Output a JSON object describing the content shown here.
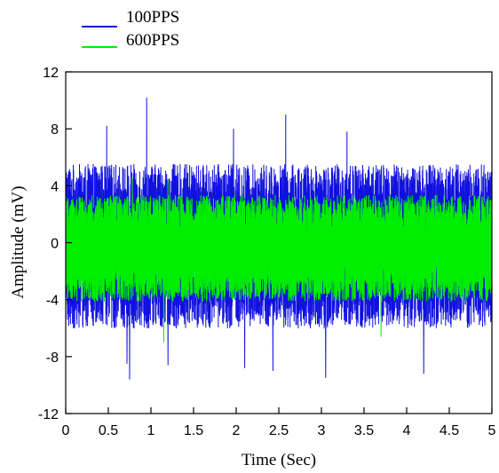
{
  "chart_data": {
    "type": "line",
    "xlabel": "Time (Sec)",
    "ylabel": "Amplitude (mV)",
    "xlim": [
      0,
      5
    ],
    "ylim": [
      -12,
      12
    ],
    "x_ticks": [
      "0",
      "0.5",
      "1",
      "1.5",
      "2",
      "2.5",
      "3",
      "3.5",
      "4",
      "4.5",
      "5"
    ],
    "y_ticks": [
      "-12",
      "-8",
      "-4",
      "0",
      "4",
      "8",
      "12"
    ],
    "legend_position": "top-left",
    "grid": false,
    "series": [
      {
        "name": "100PPS",
        "color": "#1010e0",
        "envelope": {
          "typical_positive_peak": 5.0,
          "typical_negative_peak": -5.5,
          "max_positive_spikes": [
            {
              "x": 0.48,
              "y": 8.2
            },
            {
              "x": 0.95,
              "y": 10.2
            },
            {
              "x": 1.97,
              "y": 8.0
            },
            {
              "x": 2.58,
              "y": 9.0
            },
            {
              "x": 3.3,
              "y": 7.8
            }
          ],
          "max_negative_spikes": [
            {
              "x": 0.72,
              "y": -8.5
            },
            {
              "x": 0.75,
              "y": -9.6
            },
            {
              "x": 1.2,
              "y": -8.6
            },
            {
              "x": 2.1,
              "y": -8.8
            },
            {
              "x": 2.43,
              "y": -9.0
            },
            {
              "x": 3.05,
              "y": -9.5
            },
            {
              "x": 4.2,
              "y": -9.2
            }
          ]
        }
      },
      {
        "name": "600PPS",
        "color": "#00ee00",
        "envelope": {
          "typical_positive_peak": 3.0,
          "typical_negative_peak": -3.8,
          "max_positive_spikes": [
            {
              "x": 0.78,
              "y": 4.6
            },
            {
              "x": 1.2,
              "y": 4.4
            }
          ],
          "max_negative_spikes": [
            {
              "x": 1.15,
              "y": -7.0
            },
            {
              "x": 3.7,
              "y": -6.6
            }
          ]
        }
      }
    ]
  }
}
